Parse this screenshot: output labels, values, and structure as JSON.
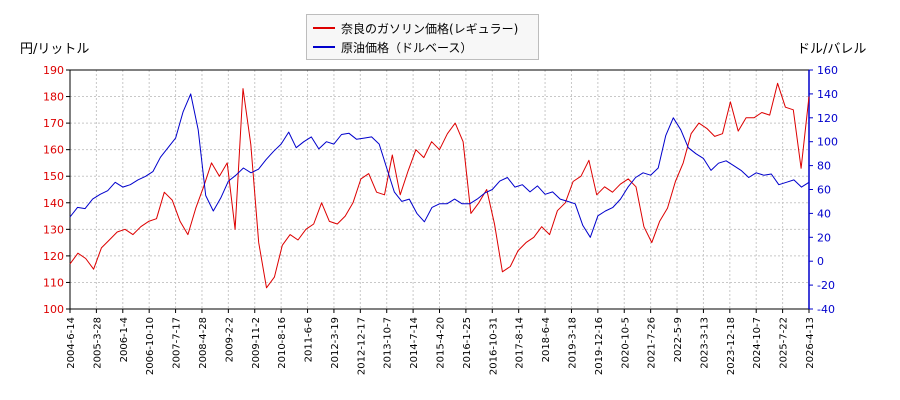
{
  "chart_data": {
    "type": "line",
    "legend_position": "top-center",
    "grid": true,
    "left_axis_label": "円/リットル",
    "right_axis_label": "ドル/バレル",
    "left_ylim": [
      100,
      190
    ],
    "left_yticks": [
      100,
      110,
      120,
      130,
      140,
      150,
      160,
      170,
      180,
      190
    ],
    "right_ylim": [
      -40,
      160
    ],
    "right_yticks": [
      -40,
      -20,
      0,
      20,
      40,
      60,
      80,
      100,
      120,
      140,
      160
    ],
    "x_ticks": [
      "2004-6-14",
      "2005-3-28",
      "2006-1-4",
      "2006-10-10",
      "2007-7-17",
      "2008-4-28",
      "2009-2-2",
      "2009-11-2",
      "2010-8-16",
      "2011-6-6",
      "2012-3-19",
      "2012-12-17",
      "2013-10-7",
      "2014-7-14",
      "2015-4-20",
      "2016-1-25",
      "2016-10-31",
      "2017-8-14",
      "2018-6-4",
      "2019-3-18",
      "2019-12-16",
      "2020-10-5",
      "2021-7-26",
      "2022-5-9",
      "2023-3-13",
      "2023-12-18",
      "2024-10-7",
      "2025-7-22",
      "2026-4-13"
    ],
    "series": [
      {
        "name": "奈良のガソリン価格(レギュラー)",
        "axis": "left",
        "color": "#dd0000",
        "values": [
          117,
          121,
          119,
          115,
          123,
          126,
          129,
          130,
          128,
          131,
          133,
          134,
          144,
          141,
          133,
          128,
          138,
          146,
          155,
          150,
          155,
          130,
          183,
          162,
          125,
          108,
          112,
          124,
          128,
          126,
          130,
          132,
          140,
          133,
          132,
          135,
          140,
          149,
          151,
          144,
          143,
          158,
          143,
          152,
          160,
          157,
          163,
          160,
          166,
          170,
          163,
          136,
          140,
          145,
          132,
          114,
          116,
          122,
          125,
          127,
          131,
          128,
          137,
          140,
          148,
          150,
          156,
          143,
          146,
          144,
          147,
          149,
          146,
          131,
          125,
          133,
          138,
          148,
          155,
          166,
          170,
          168,
          165,
          166,
          178,
          167,
          172,
          172,
          174,
          173,
          185,
          176,
          175,
          153,
          180
        ]
      },
      {
        "name": "原油価格（ドルベース）",
        "axis": "right",
        "color": "#0000cc",
        "values": [
          37,
          45,
          44,
          52,
          56,
          59,
          66,
          62,
          64,
          68,
          71,
          75,
          87,
          95,
          103,
          125,
          140,
          110,
          55,
          42,
          53,
          67,
          72,
          78,
          74,
          77,
          85,
          92,
          98,
          108,
          95,
          100,
          104,
          94,
          100,
          98,
          106,
          107,
          102,
          103,
          104,
          98,
          78,
          58,
          50,
          52,
          40,
          33,
          45,
          48,
          48,
          52,
          48,
          48,
          52,
          57,
          60,
          67,
          70,
          62,
          64,
          58,
          63,
          56,
          58,
          52,
          50,
          48,
          30,
          20,
          38,
          42,
          45,
          52,
          62,
          70,
          74,
          72,
          78,
          105,
          120,
          110,
          95,
          90,
          86,
          76,
          82,
          84,
          80,
          76,
          70,
          74,
          72,
          73,
          64,
          66,
          68,
          62,
          66
        ]
      }
    ]
  },
  "legend": {
    "items": [
      {
        "label": "奈良のガソリン価格(レギュラー)",
        "color": "#dd0000"
      },
      {
        "label": "原油価格（ドルベース）",
        "color": "#0000cc"
      }
    ]
  }
}
